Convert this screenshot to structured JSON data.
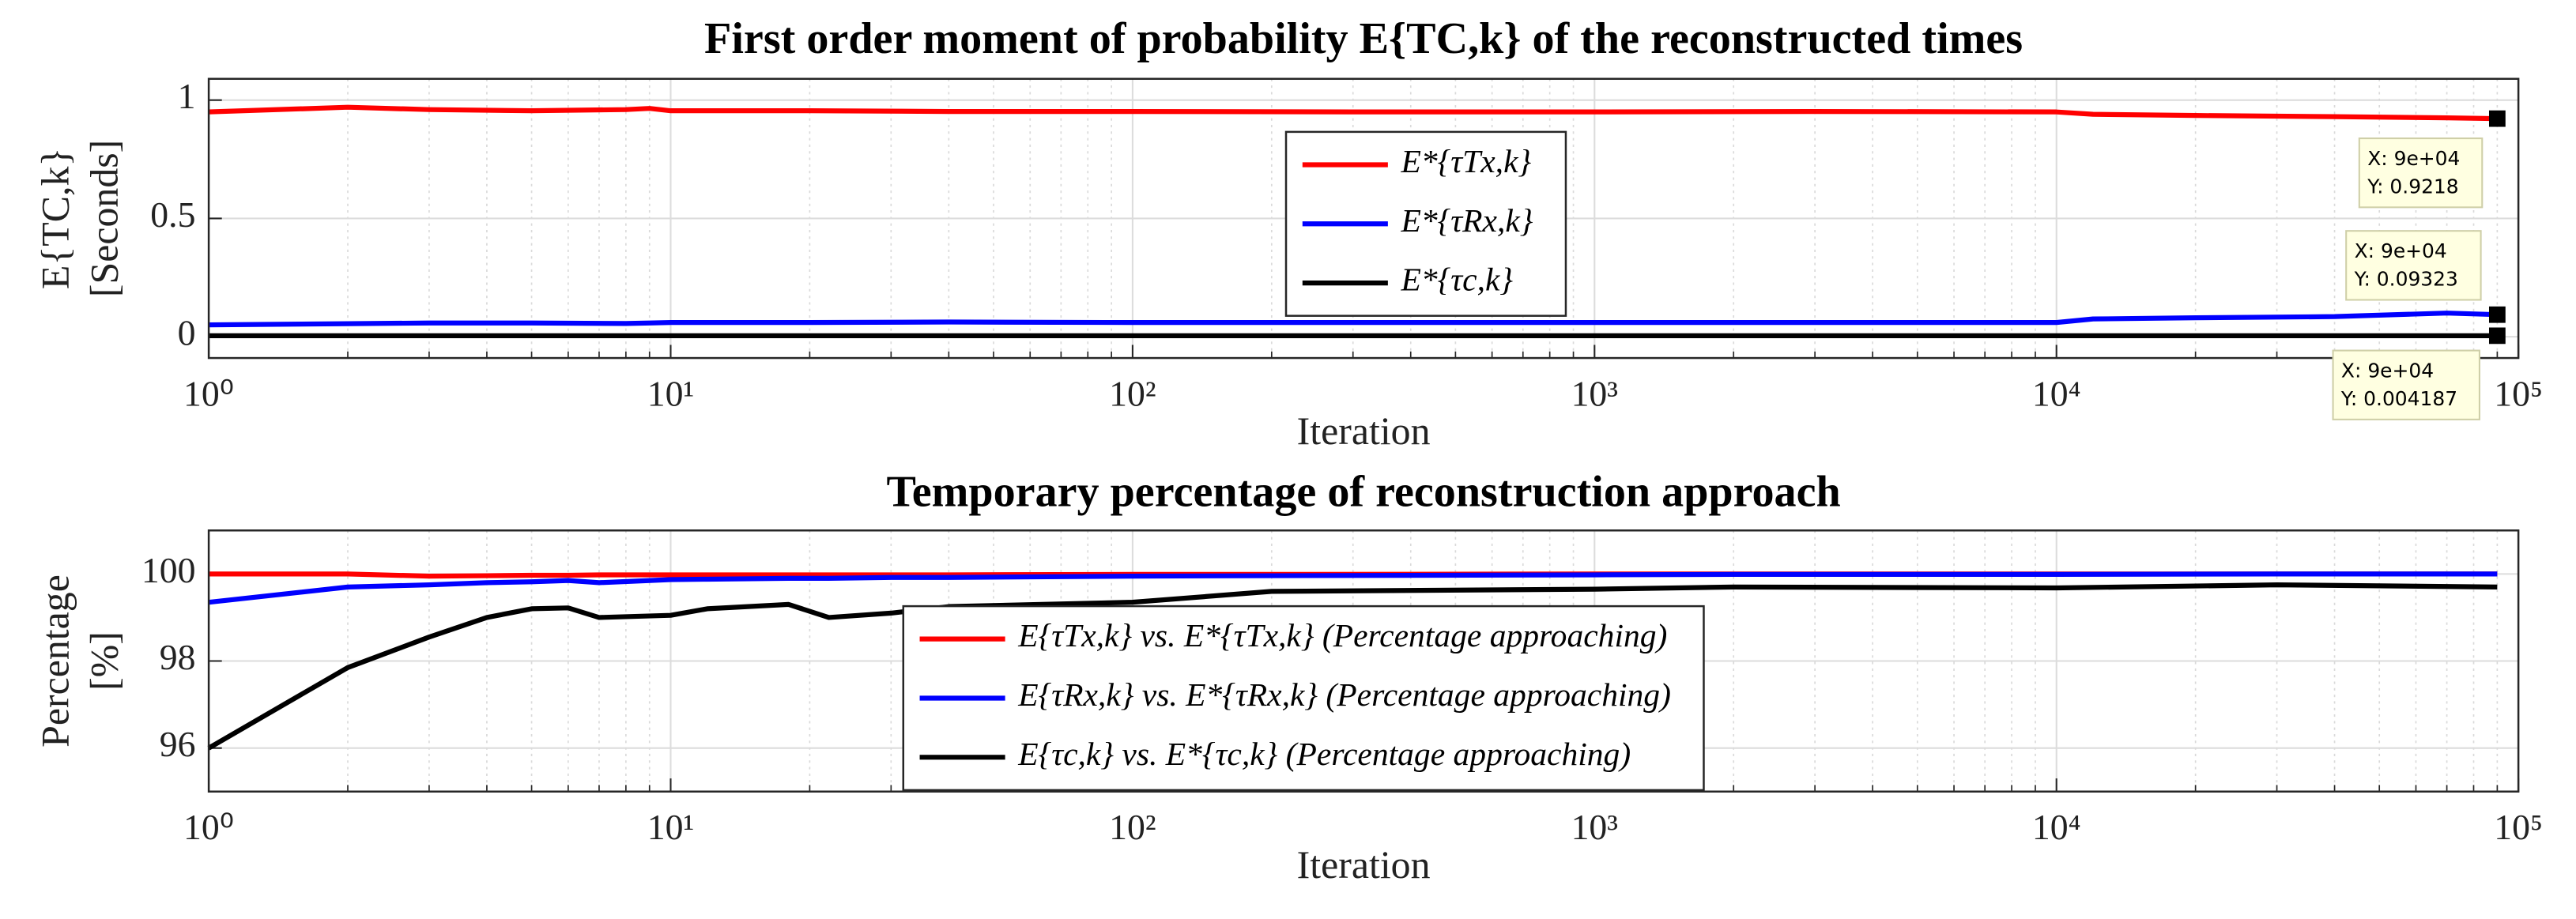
{
  "chart_data": [
    {
      "type": "line",
      "title": "First order moment of probability E{TC,k} of the reconstructed times",
      "xlabel": "Iteration",
      "ylabel": [
        "E{TC,k}",
        "[Seconds]"
      ],
      "xscale": "log",
      "xlim": [
        1,
        100000
      ],
      "xticks": [
        {
          "value": 1,
          "label": "10⁰"
        },
        {
          "value": 10,
          "label": "10¹"
        },
        {
          "value": 100,
          "label": "10²"
        },
        {
          "value": 1000,
          "label": "10³"
        },
        {
          "value": 10000,
          "label": "10⁴"
        },
        {
          "value": 100000,
          "label": "10⁵"
        }
      ],
      "ylim": [
        -0.09,
        1.09
      ],
      "yticks": [
        0,
        0.5,
        1
      ],
      "grid": true,
      "minor_grid": true,
      "legend": "north",
      "x": [
        1,
        2,
        3,
        5,
        8,
        9,
        10,
        20,
        40,
        100,
        300,
        1000,
        3000,
        10000,
        12000,
        20000,
        40000,
        70000,
        90000
      ],
      "series": [
        {
          "name": "E*{τTx,k}",
          "color": "#ff0000",
          "values": [
            0.95,
            0.97,
            0.96,
            0.955,
            0.96,
            0.965,
            0.955,
            0.955,
            0.952,
            0.952,
            0.95,
            0.95,
            0.952,
            0.95,
            0.94,
            0.935,
            0.93,
            0.925,
            0.9218
          ]
        },
        {
          "name": "E*{τRx,k}",
          "color": "#0000ff",
          "values": [
            0.05,
            0.055,
            0.058,
            0.058,
            0.056,
            0.058,
            0.06,
            0.06,
            0.062,
            0.06,
            0.06,
            0.06,
            0.06,
            0.06,
            0.075,
            0.08,
            0.085,
            0.1,
            0.09323
          ]
        },
        {
          "name": "E*{τc,k}",
          "color": "#000000",
          "values": [
            0.004,
            0.004,
            0.004,
            0.004,
            0.004,
            0.004,
            0.004,
            0.004,
            0.004,
            0.004,
            0.004,
            0.004,
            0.004,
            0.004,
            0.004,
            0.004,
            0.004,
            0.004,
            0.004187
          ]
        }
      ],
      "datatips": [
        {
          "x": 90000,
          "y": 0.9218,
          "lines": [
            "X: 9e+04",
            "Y: 0.9218"
          ]
        },
        {
          "x": 90000,
          "y": 0.09323,
          "lines": [
            "X: 9e+04",
            "Y: 0.09323"
          ]
        },
        {
          "x": 90000,
          "y": 0.004187,
          "lines": [
            "X: 9e+04",
            "Y: 0.004187"
          ]
        }
      ]
    },
    {
      "type": "line",
      "title": "Temporary percentage of reconstruction approach",
      "xlabel": "Iteration",
      "ylabel": [
        "Percentage",
        "[%]"
      ],
      "xscale": "log",
      "xlim": [
        1,
        100000
      ],
      "xticks": [
        {
          "value": 1,
          "label": "10⁰"
        },
        {
          "value": 10,
          "label": "10¹"
        },
        {
          "value": 100,
          "label": "10²"
        },
        {
          "value": 1000,
          "label": "10³"
        },
        {
          "value": 10000,
          "label": "10⁴"
        },
        {
          "value": 100000,
          "label": "10⁵"
        }
      ],
      "ylim": [
        95,
        101
      ],
      "yticks": [
        96,
        98,
        100
      ],
      "grid": true,
      "minor_grid": true,
      "legend": "south",
      "x": [
        1,
        2,
        3,
        4,
        5,
        6,
        7,
        10,
        12,
        18,
        22,
        30,
        40,
        100,
        200,
        1000,
        2000,
        10000,
        30000,
        90000
      ],
      "series": [
        {
          "name": "E{τTx,k} vs. E*{τTx,k} (Percentage approaching)",
          "color": "#ff0000",
          "values": [
            100,
            100,
            99.95,
            99.96,
            99.97,
            99.97,
            99.98,
            99.98,
            99.98,
            99.98,
            99.98,
            99.98,
            99.98,
            99.99,
            99.99,
            100,
            100,
            100,
            100,
            100
          ]
        },
        {
          "name": "E{τRx,k} vs. E*{τRx,k} (Percentage approaching)",
          "color": "#0000ff",
          "values": [
            99.35,
            99.7,
            99.75,
            99.8,
            99.82,
            99.85,
            99.8,
            99.87,
            99.88,
            99.9,
            99.9,
            99.92,
            99.92,
            99.95,
            99.96,
            99.98,
            99.99,
            99.99,
            100,
            100
          ]
        },
        {
          "name": "E{τc,k} vs. E*{τc,k} (Percentage approaching)",
          "color": "#000000",
          "values": [
            96,
            97.85,
            98.55,
            99.0,
            99.2,
            99.22,
            99.0,
            99.05,
            99.2,
            99.3,
            99.0,
            99.1,
            99.25,
            99.35,
            99.6,
            99.65,
            99.7,
            99.68,
            99.75,
            99.7
          ]
        }
      ]
    }
  ]
}
